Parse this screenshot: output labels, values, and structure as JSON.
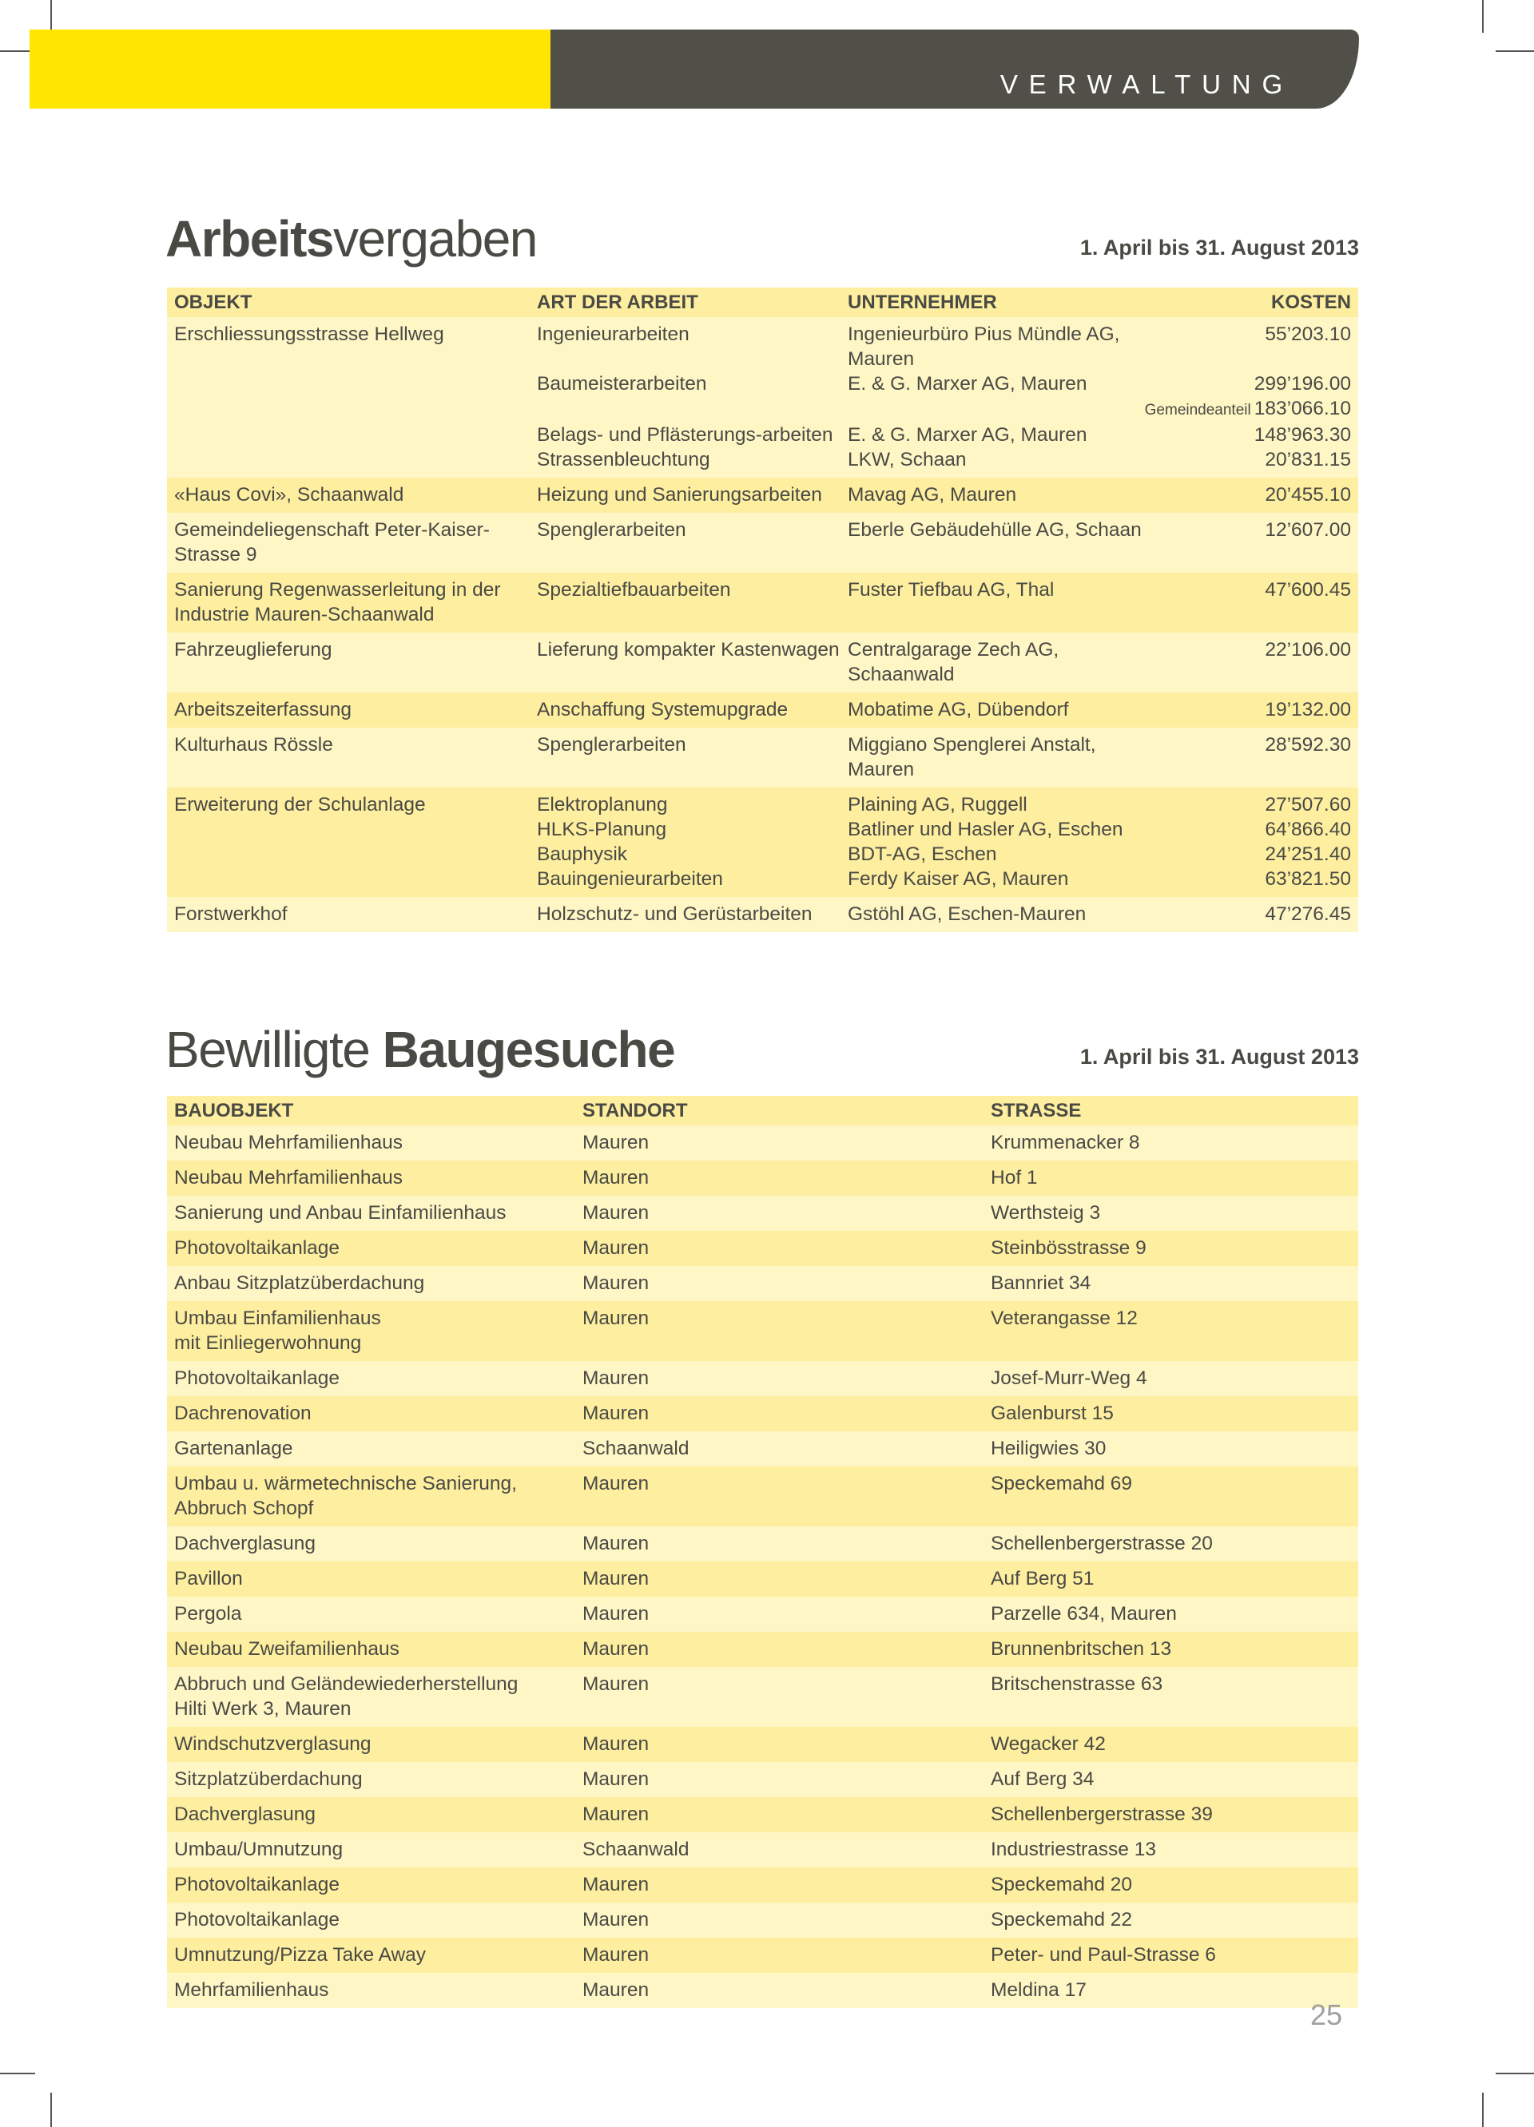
{
  "banner": {
    "section": "VERWALTUNG",
    "colors": {
      "yellow": "#ffe500",
      "dark": "#515048"
    }
  },
  "arbeitsvergaben": {
    "title_bold": "Arbeits",
    "title_light": "vergaben",
    "date_range": "1. April bis 31. August 2013",
    "headers": {
      "objekt": "OBJEKT",
      "art": "ART DER ARBEIT",
      "unternehmer": "UNTERNEHMER",
      "kosten": "KOSTEN"
    },
    "rows": [
      {
        "objekt": "Erschliessungsstrasse Hellweg",
        "items": [
          {
            "art": "Ingenieurarbeiten",
            "unternehmer": "Ingenieurbüro Pius Mündle AG, Mauren",
            "kosten": "55’203.10"
          },
          {
            "art": "Baumeisterarbeiten",
            "unternehmer": "E. & G. Marxer AG, Mauren",
            "kosten": "299’196.00"
          },
          {
            "art": "",
            "unternehmer": "",
            "kosten_note": "Gemeindeanteil",
            "kosten": "183’066.10"
          },
          {
            "art": "Belags- und Pflästerungs-arbeiten",
            "unternehmer": "E. & G. Marxer AG, Mauren",
            "kosten": "148’963.30"
          },
          {
            "art": "Strassenbleuchtung",
            "unternehmer": "LKW, Schaan",
            "kosten": "20’831.15"
          }
        ]
      },
      {
        "objekt": "«Haus Covi», Schaanwald",
        "items": [
          {
            "art": "Heizung und Sanierungsarbeiten",
            "unternehmer": "Mavag AG, Mauren",
            "kosten": "20’455.10"
          }
        ]
      },
      {
        "objekt": "Gemeindeliegenschaft Peter-Kaiser-Strasse 9",
        "items": [
          {
            "art": "Spenglerarbeiten",
            "unternehmer": "Eberle Gebäudehülle AG, Schaan",
            "kosten": "12’607.00"
          }
        ]
      },
      {
        "objekt": "Sanierung Regenwasserleitung in der Industrie Mauren-Schaanwald",
        "items": [
          {
            "art": "Spezialtiefbauarbeiten",
            "unternehmer": "Fuster Tiefbau AG, Thal",
            "kosten": "47’600.45"
          }
        ]
      },
      {
        "objekt": "Fahrzeuglieferung",
        "items": [
          {
            "art": "Lieferung kompakter Kastenwagen",
            "unternehmer": "Centralgarage Zech AG, Schaanwald",
            "kosten": "22’106.00"
          }
        ]
      },
      {
        "objekt": "Arbeitszeiterfassung",
        "items": [
          {
            "art": "Anschaffung Systemupgrade",
            "unternehmer": "Mobatime AG, Dübendorf",
            "kosten": "19’132.00"
          }
        ]
      },
      {
        "objekt": "Kulturhaus Rössle",
        "items": [
          {
            "art": "Spenglerarbeiten",
            "unternehmer": "Miggiano Spenglerei Anstalt, Mauren",
            "kosten": "28’592.30"
          }
        ]
      },
      {
        "objekt": "Erweiterung der Schulanlage",
        "items": [
          {
            "art": "Elektroplanung",
            "unternehmer": "Plaining AG, Ruggell",
            "kosten": "27’507.60"
          },
          {
            "art": "HLKS-Planung",
            "unternehmer": "Batliner und Hasler AG, Eschen",
            "kosten": "64’866.40"
          },
          {
            "art": "Bauphysik",
            "unternehmer": "BDT-AG, Eschen",
            "kosten": "24’251.40"
          },
          {
            "art": "Bauingenieurarbeiten",
            "unternehmer": "Ferdy Kaiser AG, Mauren",
            "kosten": "63’821.50"
          }
        ]
      },
      {
        "objekt": "Forstwerkhof",
        "items": [
          {
            "art": "Holzschutz- und Gerüstarbeiten",
            "unternehmer": "Gstöhl AG, Eschen-Mauren",
            "kosten": "47’276.45"
          }
        ]
      }
    ]
  },
  "baugesuche": {
    "title_light": "Bewilligte ",
    "title_bold": "Baugesuche",
    "date_range": "1. April bis 31. August 2013",
    "headers": {
      "bauobjekt": "BAUOBJEKT",
      "standort": "STANDORT",
      "strasse": "STRASSE"
    },
    "rows": [
      {
        "bauobjekt": "Neubau Mehrfamilienhaus",
        "standort": "Mauren",
        "strasse": "Krummenacker 8"
      },
      {
        "bauobjekt": "Neubau Mehrfamilienhaus",
        "standort": "Mauren",
        "strasse": "Hof 1"
      },
      {
        "bauobjekt": "Sanierung und Anbau Einfamilienhaus",
        "standort": "Mauren",
        "strasse": "Werthsteig 3"
      },
      {
        "bauobjekt": "Photovoltaikanlage",
        "standort": "Mauren",
        "strasse": "Steinbösstrasse 9"
      },
      {
        "bauobjekt": "Anbau Sitzplatzüberdachung",
        "standort": "Mauren",
        "strasse": "Bannriet 34"
      },
      {
        "bauobjekt": "Umbau Einfamilienhaus\nmit Einliegerwohnung",
        "standort": "Mauren",
        "strasse": "Veterangasse 12"
      },
      {
        "bauobjekt": "Photovoltaikanlage",
        "standort": "Mauren",
        "strasse": "Josef-Murr-Weg 4"
      },
      {
        "bauobjekt": "Dachrenovation",
        "standort": "Mauren",
        "strasse": "Galenburst 15"
      },
      {
        "bauobjekt": "Gartenanlage",
        "standort": "Schaanwald",
        "strasse": "Heiligwies 30"
      },
      {
        "bauobjekt": "Umbau u. wärmetechnische Sanierung,\nAbbruch Schopf",
        "standort": "Mauren",
        "strasse": "Speckemahd 69"
      },
      {
        "bauobjekt": "Dachverglasung",
        "standort": "Mauren",
        "strasse": "Schellenbergerstrasse 20"
      },
      {
        "bauobjekt": "Pavillon",
        "standort": "Mauren",
        "strasse": "Auf Berg 51"
      },
      {
        "bauobjekt": "Pergola",
        "standort": "Mauren",
        "strasse": "Parzelle 634, Mauren"
      },
      {
        "bauobjekt": "Neubau Zweifamilienhaus",
        "standort": "Mauren",
        "strasse": "Brunnenbritschen 13"
      },
      {
        "bauobjekt": "Abbruch und Geländewiederherstellung\nHilti Werk 3, Mauren",
        "standort": "Mauren",
        "strasse": "Britschenstrasse 63"
      },
      {
        "bauobjekt": "Windschutzverglasung",
        "standort": "Mauren",
        "strasse": "Wegacker 42"
      },
      {
        "bauobjekt": "Sitzplatzüberdachung",
        "standort": "Mauren",
        "strasse": "Auf Berg 34"
      },
      {
        "bauobjekt": "Dachverglasung",
        "standort": "Mauren",
        "strasse": "Schellenbergerstrasse 39"
      },
      {
        "bauobjekt": "Umbau/Umnutzung",
        "standort": "Schaanwald",
        "strasse": "Industriestrasse 13"
      },
      {
        "bauobjekt": "Photovoltaikanlage",
        "standort": "Mauren",
        "strasse": "Speckemahd 20"
      },
      {
        "bauobjekt": "Photovoltaikanlage",
        "standort": "Mauren",
        "strasse": "Speckemahd 22"
      },
      {
        "bauobjekt": "Umnutzung/Pizza Take Away",
        "standort": "Mauren",
        "strasse": "Peter- und Paul-Strasse 6"
      },
      {
        "bauobjekt": "Mehrfamilienhaus",
        "standort": "Mauren",
        "strasse": "Meldina 17"
      }
    ]
  },
  "page_number": "25"
}
